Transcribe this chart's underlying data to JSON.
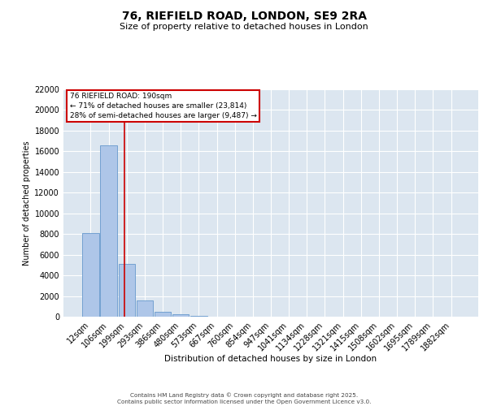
{
  "title_line1": "76, RIEFIELD ROAD, LONDON, SE9 2RA",
  "title_line2": "Size of property relative to detached houses in London",
  "xlabel": "Distribution of detached houses by size in London",
  "ylabel": "Number of detached properties",
  "bar_labels": [
    "12sqm",
    "106sqm",
    "199sqm",
    "293sqm",
    "386sqm",
    "480sqm",
    "573sqm",
    "667sqm",
    "760sqm",
    "854sqm",
    "947sqm",
    "1041sqm",
    "1134sqm",
    "1228sqm",
    "1321sqm",
    "1415sqm",
    "1508sqm",
    "1602sqm",
    "1695sqm",
    "1789sqm",
    "1882sqm"
  ],
  "bar_values": [
    8100,
    16600,
    5100,
    1600,
    500,
    200,
    50,
    0,
    0,
    0,
    0,
    0,
    0,
    0,
    0,
    0,
    0,
    0,
    0,
    0,
    0
  ],
  "bar_color": "#aec6e8",
  "bar_edgecolor": "#6699cc",
  "bg_color": "#dce6f0",
  "grid_color": "#ffffff",
  "vline_x": 1.87,
  "vline_color": "#cc0000",
  "ylim_min": 0,
  "ylim_max": 22000,
  "yticks": [
    0,
    2000,
    4000,
    6000,
    8000,
    10000,
    12000,
    14000,
    16000,
    18000,
    20000,
    22000
  ],
  "annotation_title": "76 RIEFIELD ROAD: 190sqm",
  "annotation_line1": "← 71% of detached houses are smaller (23,814)",
  "annotation_line2": "28% of semi-detached houses are larger (9,487) →",
  "annotation_box_edgecolor": "#cc0000",
  "footer_line1": "Contains HM Land Registry data © Crown copyright and database right 2025.",
  "footer_line2": "Contains public sector information licensed under the Open Government Licence v3.0."
}
